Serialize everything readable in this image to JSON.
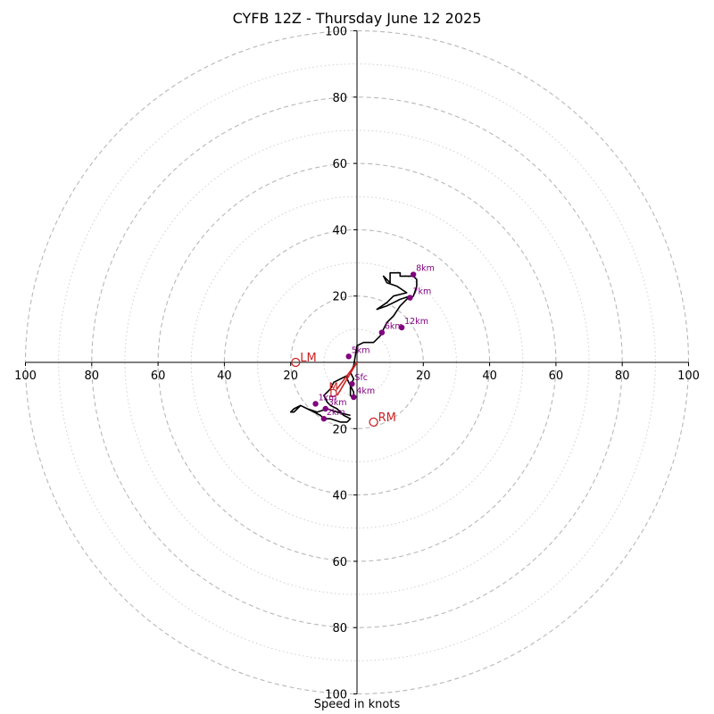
{
  "chart_data": {
    "type": "scatter",
    "subtype": "hodograph",
    "title": "CYFB 12Z - Thursday June 12 2025",
    "xlabel": "Speed in knots",
    "ylabel": "",
    "units": "knots",
    "xlim": [
      -100,
      100
    ],
    "ylim": [
      -100,
      100
    ],
    "rings_major": [
      20,
      40,
      60,
      80,
      100
    ],
    "rings_minor": [
      10,
      30,
      50,
      70,
      90
    ],
    "tick_labels": [
      "100",
      "80",
      "60",
      "40",
      "20",
      "20",
      "40",
      "60",
      "80",
      "100"
    ],
    "y_tick_labels": [
      "100",
      "80",
      "60",
      "40",
      "20",
      "20",
      "40",
      "60",
      "80",
      "100"
    ],
    "grid": true,
    "colors": {
      "trace": "#000000",
      "markers": "#800080",
      "storm_motion": "#cc2222",
      "grid": "#b0b0b0"
    },
    "trace": [
      [
        -2,
        -16
      ],
      [
        -6,
        -15
      ],
      [
        -9,
        -14
      ],
      [
        -12,
        -15
      ],
      [
        -15,
        -14
      ],
      [
        -17,
        -13
      ],
      [
        -19,
        -14
      ],
      [
        -20,
        -15
      ],
      [
        -19,
        -15
      ],
      [
        -18,
        -14
      ],
      [
        -17,
        -13
      ],
      [
        -15,
        -14
      ],
      [
        -13,
        -15
      ],
      [
        -11,
        -16
      ],
      [
        -10,
        -17
      ],
      [
        -8,
        -17
      ],
      [
        -5,
        -18
      ],
      [
        -3,
        -18
      ],
      [
        -2,
        -17
      ],
      [
        -4,
        -16
      ],
      [
        -6,
        -14
      ],
      [
        -8,
        -13
      ],
      [
        -9,
        -12
      ],
      [
        -10,
        -10
      ],
      [
        -9,
        -9
      ],
      [
        -8,
        -8
      ],
      [
        -7,
        -6
      ],
      [
        -5,
        -5
      ],
      [
        -3,
        -4
      ],
      [
        -3,
        -5
      ],
      [
        -2,
        -7
      ],
      [
        -2,
        -10
      ],
      [
        -1,
        -11
      ],
      [
        -1,
        -9
      ],
      [
        -2,
        -7
      ],
      [
        -1,
        -5
      ],
      [
        -2,
        -3
      ],
      [
        -1,
        -1
      ],
      [
        0,
        5
      ],
      [
        2,
        6
      ],
      [
        4,
        6
      ],
      [
        5,
        6
      ],
      [
        7,
        8
      ],
      [
        8,
        10
      ],
      [
        9,
        12
      ],
      [
        11,
        14
      ],
      [
        13,
        17
      ],
      [
        16,
        20
      ],
      [
        13,
        19
      ],
      [
        9,
        17
      ],
      [
        6,
        16
      ],
      [
        9,
        18
      ],
      [
        11,
        20
      ],
      [
        15,
        21
      ],
      [
        12,
        23
      ],
      [
        9,
        24
      ],
      [
        8,
        26
      ],
      [
        10,
        24
      ],
      [
        10,
        27
      ],
      [
        13,
        27
      ],
      [
        13,
        26
      ],
      [
        16,
        26
      ],
      [
        17,
        26
      ],
      [
        18,
        25
      ],
      [
        18,
        23
      ],
      [
        17,
        20
      ],
      [
        16,
        19
      ]
    ],
    "markers": [
      {
        "label": "Sfc",
        "u": -1.5,
        "v": -6.5
      },
      {
        "label": "1km",
        "u": -12.5,
        "v": -12.5
      },
      {
        "label": "2km",
        "u": -10,
        "v": -17
      },
      {
        "label": "3km",
        "u": -9.5,
        "v": -14
      },
      {
        "label": "4km",
        "u": -1,
        "v": -10.5
      },
      {
        "label": "5km",
        "u": -2.5,
        "v": 1.8
      },
      {
        "label": "6km",
        "u": 7.5,
        "v": 9
      },
      {
        "label": "7km",
        "u": 16,
        "v": 19.5
      },
      {
        "label": "8km",
        "u": 17,
        "v": 26.5
      },
      {
        "label": "12km",
        "u": 13.5,
        "v": 10.5
      }
    ],
    "storm_motion": [
      {
        "label": "LM",
        "u": -18.5,
        "v": 0
      },
      {
        "label": "RM",
        "u": 5,
        "v": -18
      }
    ],
    "mean_wind_vectors": [
      {
        "label": "M",
        "from": [
          0,
          0
        ],
        "to": [
          -6,
          -8
        ]
      },
      {
        "label": "D",
        "from": [
          0,
          0
        ],
        "to": [
          -6,
          -10
        ]
      }
    ]
  }
}
